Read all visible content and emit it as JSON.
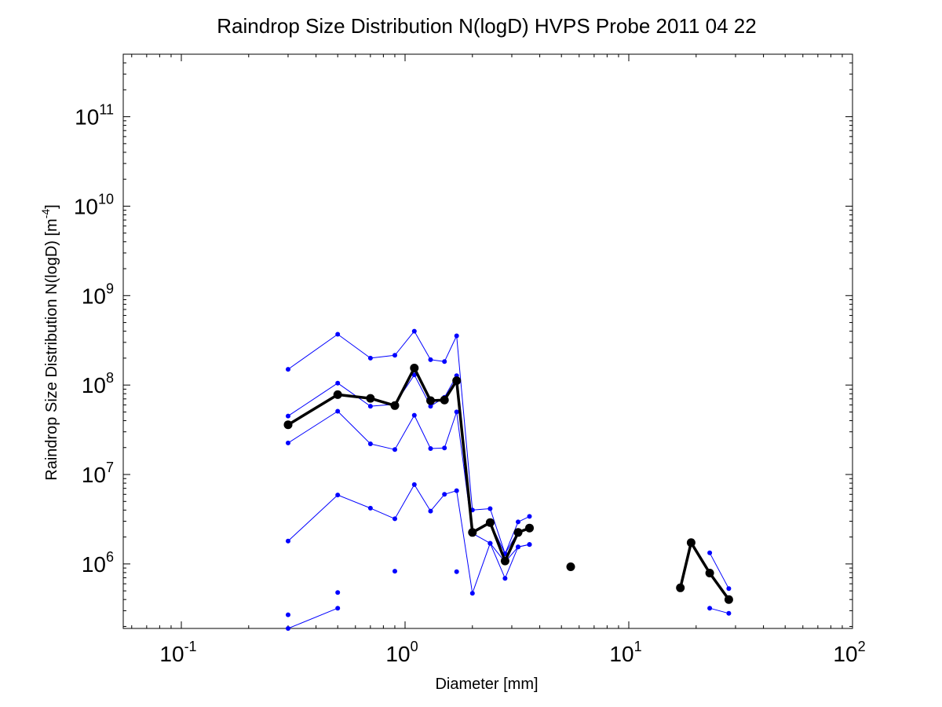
{
  "chart_data": {
    "type": "line",
    "title": "Raindrop Size Distribution N(logD) HVPS Probe 2011 04 22",
    "xlabel": "Diameter [mm]",
    "ylabel_main": "Raindrop Size Distribution N(logD) [m",
    "ylabel_sup": "-4",
    "ylabel_end": "]",
    "xscale": "log",
    "yscale": "log",
    "xlim": [
      0.055,
      100
    ],
    "ylim": [
      190000,
      500000000000
    ],
    "grid": false,
    "x_ticks": [
      {
        "value": 0.1,
        "base": "10",
        "exp": "-1"
      },
      {
        "value": 1,
        "base": "10",
        "exp": "0"
      },
      {
        "value": 10,
        "base": "10",
        "exp": "1"
      },
      {
        "value": 100,
        "base": "10",
        "exp": "2"
      }
    ],
    "y_ticks": [
      {
        "value": 1000000,
        "base": "10",
        "exp": "6"
      },
      {
        "value": 10000000,
        "base": "10",
        "exp": "7"
      },
      {
        "value": 100000000,
        "base": "10",
        "exp": "8"
      },
      {
        "value": 1000000000,
        "base": "10",
        "exp": "9"
      },
      {
        "value": 10000000000,
        "base": "10",
        "exp": "10"
      },
      {
        "value": 100000000000,
        "base": "10",
        "exp": "11"
      }
    ],
    "colors": {
      "mean": "#000000",
      "percentile": "#0000ff"
    },
    "series": [
      {
        "role": "mean",
        "segments": [
          {
            "x": [
              0.3,
              0.5,
              0.7,
              0.9,
              1.1,
              1.3,
              1.5,
              1.7,
              2.0,
              2.4,
              2.8,
              3.2,
              3.6
            ],
            "y": [
              36000000,
              78000000,
              71000000,
              59000000,
              155000000,
              67000000,
              68000000,
              112000000,
              2250000,
              2900000,
              1080000,
              2250000,
              2520000
            ]
          },
          {
            "x": [
              5.5
            ],
            "y": [
              930000
            ]
          },
          {
            "x": [
              17,
              19,
              23,
              28
            ],
            "y": [
              540000,
              1730000,
              790000,
              400000
            ]
          }
        ]
      },
      {
        "role": "percentile",
        "segments": [
          {
            "x": [
              0.3,
              0.5,
              0.7,
              0.9,
              1.1,
              1.3,
              1.5,
              1.7,
              2.0,
              2.4,
              2.8,
              3.2,
              3.6
            ],
            "y": [
              150000000,
              370000000,
              200000000,
              215000000,
              400000000,
              192000000,
              183000000,
              355000000,
              4000000,
              4150000,
              1300000,
              2950000,
              3400000
            ]
          },
          {
            "x": [
              23,
              28
            ],
            "y": [
              1330000,
              530000
            ]
          }
        ]
      },
      {
        "role": "percentile",
        "segments": [
          {
            "x": [
              0.3,
              0.5,
              0.7,
              0.9,
              1.1,
              1.3,
              1.5,
              1.7,
              2.0,
              2.4,
              2.8,
              3.2,
              3.6
            ],
            "y": [
              45000000,
              105000000,
              58000000,
              61000000,
              130000000,
              58000000,
              73000000,
              127000000,
              2200000,
              2900000,
              1300000,
              2300000,
              2500000
            ]
          }
        ]
      },
      {
        "role": "percentile",
        "segments": [
          {
            "x": [
              0.3,
              0.5,
              0.7,
              0.9,
              1.1,
              1.3,
              1.5,
              1.7,
              2.0,
              2.4,
              2.8,
              3.2,
              3.6
            ],
            "y": [
              22500000,
              51000000,
              22000000,
              19000000,
              46000000,
              19500000,
              19800000,
              50000000,
              2200000,
              1700000,
              1050000,
              1550000,
              1650000
            ]
          }
        ]
      },
      {
        "role": "percentile",
        "segments": [
          {
            "x": [
              0.3,
              0.5,
              0.7,
              0.9,
              1.1,
              1.3,
              1.5,
              1.7,
              2.0,
              2.4,
              2.8,
              3.2,
              3.6
            ],
            "y": [
              1800000,
              5900000,
              4200000,
              3200000,
              7700000,
              3900000,
              6000000,
              6600000,
              470000,
              1700000,
              690000,
              1550000,
              1650000
            ]
          },
          {
            "x": [
              23,
              28
            ],
            "y": [
              320000,
              280000
            ]
          }
        ]
      },
      {
        "role": "percentile",
        "segments": [
          {
            "x": [
              0.3,
              0.5
            ],
            "y": [
              190000,
              320000
            ]
          },
          {
            "x": [
              0.3
            ],
            "y": [
              270000
            ]
          },
          {
            "x": [
              0.5
            ],
            "y": [
              480000
            ]
          },
          {
            "x": [
              0.9
            ],
            "y": [
              830000
            ]
          },
          {
            "x": [
              1.7
            ],
            "y": [
              820000
            ]
          }
        ]
      }
    ]
  }
}
